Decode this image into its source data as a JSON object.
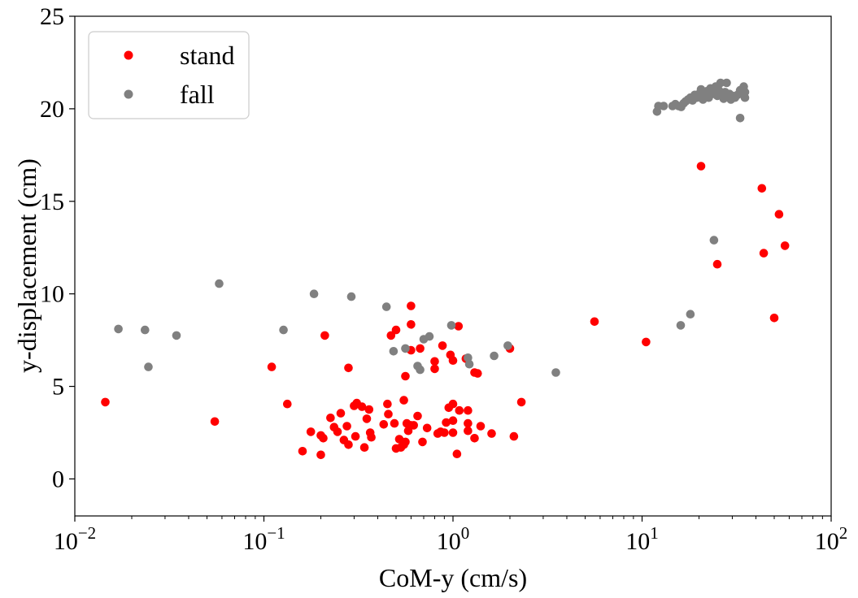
{
  "chart_data": {
    "type": "scatter",
    "xscale": "log",
    "xlim": [
      0.01,
      100
    ],
    "ylim": [
      -2,
      25
    ],
    "xlabel": "CoM-y (cm/s)",
    "ylabel": "y-displacement (cm)",
    "xticks": [
      {
        "base": "10",
        "exp": "−2"
      },
      {
        "base": "10",
        "exp": "−1"
      },
      {
        "base": "10",
        "exp": "0"
      },
      {
        "base": "10",
        "exp": "1"
      },
      {
        "base": "10",
        "exp": "2"
      }
    ],
    "yticks": [
      "0",
      "5",
      "10",
      "15",
      "20",
      "25"
    ],
    "legend_position": "top-left",
    "series": [
      {
        "name": "stand",
        "color": "#ff0000",
        "points": [
          [
            0.0145,
            4.15
          ],
          [
            0.055,
            3.1
          ],
          [
            0.11,
            6.05
          ],
          [
            0.133,
            4.05
          ],
          [
            0.16,
            1.5
          ],
          [
            0.177,
            2.55
          ],
          [
            0.2,
            1.3
          ],
          [
            0.2,
            2.35
          ],
          [
            0.206,
            2.2
          ],
          [
            0.21,
            7.75
          ],
          [
            0.225,
            3.3
          ],
          [
            0.235,
            2.8
          ],
          [
            0.245,
            2.55
          ],
          [
            0.255,
            3.55
          ],
          [
            0.265,
            2.1
          ],
          [
            0.275,
            2.85
          ],
          [
            0.28,
            1.85
          ],
          [
            0.28,
            6.0
          ],
          [
            0.3,
            3.95
          ],
          [
            0.305,
            2.3
          ],
          [
            0.31,
            4.1
          ],
          [
            0.33,
            3.9
          ],
          [
            0.34,
            1.7
          ],
          [
            0.35,
            3.25
          ],
          [
            0.36,
            3.75
          ],
          [
            0.365,
            2.5
          ],
          [
            0.37,
            2.25
          ],
          [
            0.43,
            2.95
          ],
          [
            0.45,
            4.05
          ],
          [
            0.455,
            3.5
          ],
          [
            0.47,
            7.75
          ],
          [
            0.49,
            3.0
          ],
          [
            0.5,
            8.05
          ],
          [
            0.5,
            1.65
          ],
          [
            0.52,
            2.15
          ],
          [
            0.53,
            1.7
          ],
          [
            0.55,
            4.25
          ],
          [
            0.55,
            1.85
          ],
          [
            0.56,
            2.0
          ],
          [
            0.56,
            5.55
          ],
          [
            0.57,
            3.0
          ],
          [
            0.58,
            2.6
          ],
          [
            0.6,
            9.35
          ],
          [
            0.6,
            8.35
          ],
          [
            0.6,
            2.9
          ],
          [
            0.6,
            6.95
          ],
          [
            0.62,
            2.9
          ],
          [
            0.65,
            3.4
          ],
          [
            0.67,
            7.05
          ],
          [
            0.69,
            2.0
          ],
          [
            0.73,
            2.75
          ],
          [
            0.8,
            5.95
          ],
          [
            0.8,
            6.35
          ],
          [
            0.83,
            2.45
          ],
          [
            0.86,
            2.55
          ],
          [
            0.88,
            7.2
          ],
          [
            0.9,
            2.5
          ],
          [
            0.92,
            3.05
          ],
          [
            0.95,
            3.85
          ],
          [
            0.97,
            6.7
          ],
          [
            1.0,
            4.05
          ],
          [
            1.0,
            3.15
          ],
          [
            1.0,
            2.5
          ],
          [
            1.0,
            6.4
          ],
          [
            1.05,
            1.35
          ],
          [
            1.07,
            8.25
          ],
          [
            1.08,
            3.7
          ],
          [
            1.17,
            6.5
          ],
          [
            1.2,
            3.0
          ],
          [
            1.2,
            3.7
          ],
          [
            1.2,
            2.6
          ],
          [
            1.3,
            5.75
          ],
          [
            1.3,
            2.2
          ],
          [
            1.35,
            5.7
          ],
          [
            1.4,
            2.85
          ],
          [
            1.6,
            2.45
          ],
          [
            2.0,
            7.05
          ],
          [
            2.1,
            2.3
          ],
          [
            2.3,
            4.15
          ],
          [
            5.6,
            8.5
          ],
          [
            10.5,
            7.4
          ],
          [
            20.5,
            16.9
          ],
          [
            25.0,
            11.6
          ],
          [
            43.0,
            15.7
          ],
          [
            44.0,
            12.2
          ],
          [
            50.0,
            8.7
          ],
          [
            53.0,
            14.3
          ],
          [
            57.0,
            12.6
          ]
        ]
      },
      {
        "name": "fall",
        "color": "#808080",
        "points": [
          [
            0.017,
            8.1
          ],
          [
            0.0235,
            8.05
          ],
          [
            0.0245,
            6.05
          ],
          [
            0.0345,
            7.75
          ],
          [
            0.058,
            10.55
          ],
          [
            0.127,
            8.05
          ],
          [
            0.184,
            10.0
          ],
          [
            0.29,
            9.85
          ],
          [
            0.445,
            9.3
          ],
          [
            0.485,
            6.9
          ],
          [
            0.56,
            7.05
          ],
          [
            0.65,
            6.1
          ],
          [
            0.67,
            5.9
          ],
          [
            0.7,
            7.55
          ],
          [
            0.75,
            7.7
          ],
          [
            0.98,
            8.3
          ],
          [
            1.2,
            6.55
          ],
          [
            1.22,
            6.2
          ],
          [
            1.65,
            6.65
          ],
          [
            1.95,
            7.2
          ],
          [
            3.5,
            5.75
          ],
          [
            16.0,
            8.3
          ],
          [
            18.0,
            8.9
          ],
          [
            24.0,
            12.9
          ],
          [
            33.0,
            19.5
          ],
          [
            12.0,
            19.85
          ],
          [
            12.2,
            20.15
          ],
          [
            13.0,
            20.15
          ],
          [
            14.5,
            20.15
          ],
          [
            15.0,
            20.25
          ],
          [
            15.6,
            20.15
          ],
          [
            16.1,
            20.1
          ],
          [
            16.6,
            20.3
          ],
          [
            17.0,
            20.4
          ],
          [
            17.5,
            20.5
          ],
          [
            18.0,
            20.6
          ],
          [
            18.5,
            20.45
          ],
          [
            19.0,
            20.75
          ],
          [
            19.5,
            20.6
          ],
          [
            20.0,
            20.8
          ],
          [
            20.5,
            21.05
          ],
          [
            21.0,
            20.5
          ],
          [
            21.5,
            20.85
          ],
          [
            22.0,
            20.95
          ],
          [
            22.5,
            20.6
          ],
          [
            23.0,
            21.1
          ],
          [
            23.5,
            20.8
          ],
          [
            24.0,
            20.95
          ],
          [
            24.5,
            21.2
          ],
          [
            25.0,
            20.7
          ],
          [
            25.5,
            21.0
          ],
          [
            26.0,
            21.4
          ],
          [
            26.5,
            20.85
          ],
          [
            27.0,
            20.55
          ],
          [
            27.5,
            20.9
          ],
          [
            28.0,
            21.4
          ],
          [
            28.5,
            20.65
          ],
          [
            29.0,
            20.8
          ],
          [
            29.5,
            20.5
          ],
          [
            30.0,
            20.7
          ],
          [
            31.0,
            20.6
          ],
          [
            32.0,
            20.75
          ],
          [
            33.0,
            21.0
          ],
          [
            34.0,
            20.85
          ],
          [
            34.5,
            21.2
          ],
          [
            35.0,
            20.9
          ],
          [
            35.0,
            20.6
          ]
        ]
      }
    ]
  }
}
